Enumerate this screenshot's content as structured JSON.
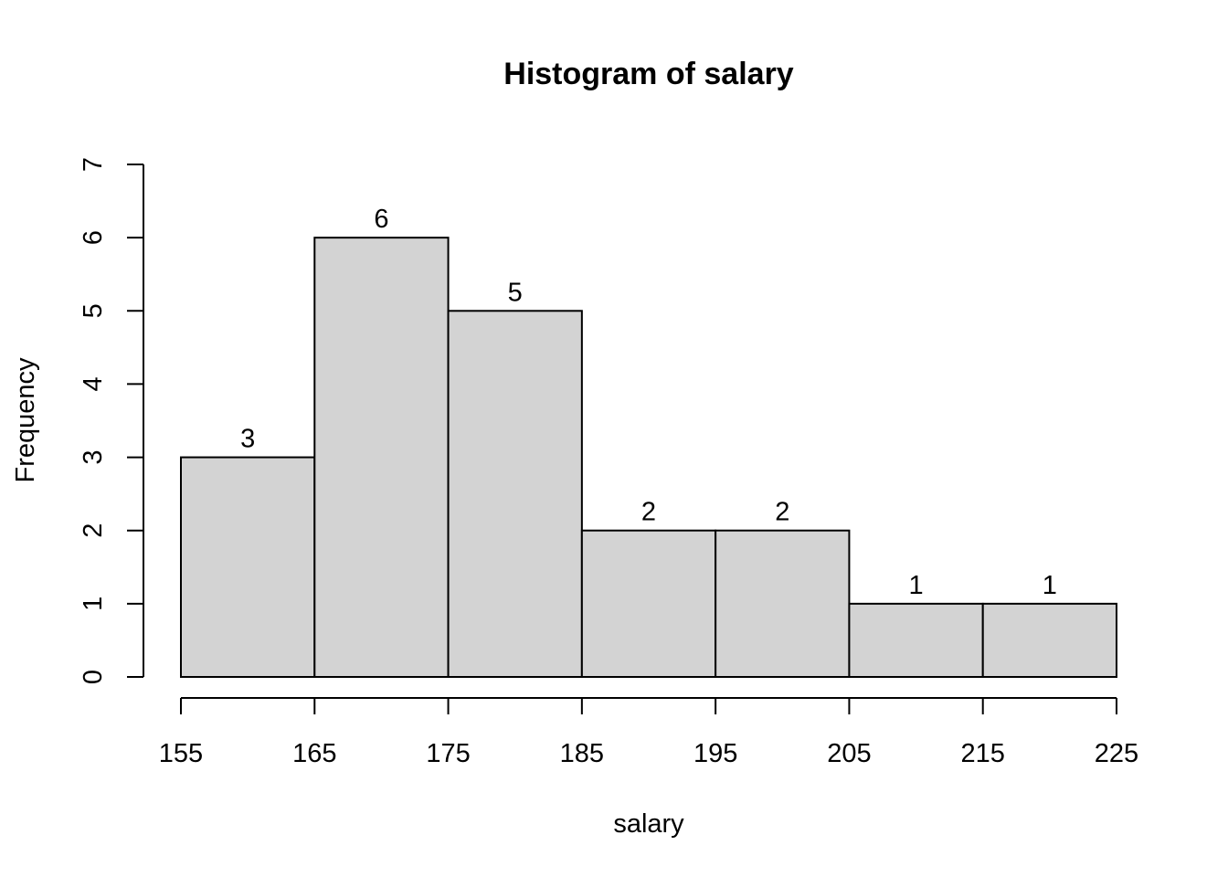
{
  "chart_data": {
    "type": "bar",
    "title": "Histogram of salary",
    "xlabel": "salary",
    "ylabel": "Frequency",
    "bins": [
      {
        "start": 155,
        "end": 165,
        "count": 3
      },
      {
        "start": 165,
        "end": 175,
        "count": 6
      },
      {
        "start": 175,
        "end": 185,
        "count": 5
      },
      {
        "start": 185,
        "end": 195,
        "count": 2
      },
      {
        "start": 195,
        "end": 205,
        "count": 2
      },
      {
        "start": 205,
        "end": 215,
        "count": 1
      },
      {
        "start": 215,
        "end": 225,
        "count": 1
      }
    ],
    "labels": [
      "3",
      "6",
      "5",
      "2",
      "2",
      "1",
      "1"
    ],
    "xticks": [
      155,
      165,
      175,
      185,
      195,
      205,
      215,
      225
    ],
    "yticks": [
      0,
      1,
      2,
      3,
      4,
      5,
      6,
      7
    ],
    "xlim": [
      155,
      225
    ],
    "ylim": [
      0,
      7
    ],
    "grid": false,
    "bar_color": "#d3d3d3",
    "border_color": "#000000"
  }
}
